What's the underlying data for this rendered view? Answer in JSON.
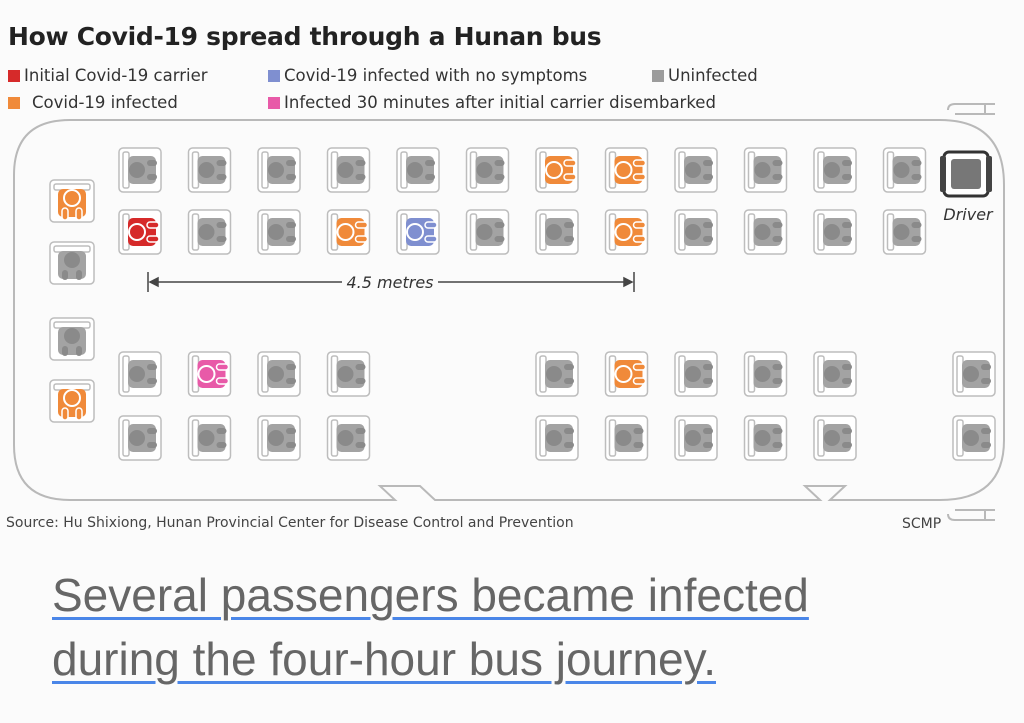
{
  "title": "How Covid-19 spread through a Hunan bus",
  "legend": [
    {
      "label": "Initial Covid-19 carrier",
      "color": "#d62a2a"
    },
    {
      "label": "Covid-19 infected",
      "color": "#f08a3a"
    },
    {
      "label": "Covid-19 infected with no symptoms",
      "color": "#7f8fd0"
    },
    {
      "label": "Infected 30 minutes after initial carrier disembarked",
      "color": "#e85aa8"
    },
    {
      "label": "Uninfected",
      "color": "#9c9c9c"
    }
  ],
  "distance_label": "4.5 metres",
  "driver_label": "Driver",
  "source": "Source: Hu Shixiong, Hunan Provincial Center for Disease Control and Prevention",
  "credit": "SCMP",
  "caption": {
    "line1": "Several passengers became infected",
    "line2": "during the four-hour bus journey."
  },
  "seating": {
    "right_row1": [
      "U",
      "U",
      "U",
      "U",
      "U",
      "U",
      "I",
      "I",
      "U",
      "U",
      "U",
      "U"
    ],
    "right_row2": [
      "C",
      "U",
      "U",
      "I",
      "A",
      "U",
      "U",
      "I",
      "U",
      "U",
      "U",
      "U"
    ],
    "left_row1": [
      "U",
      "P",
      "U",
      "U",
      null,
      null,
      "U",
      "I",
      "U",
      "U",
      "U",
      null,
      "U"
    ],
    "left_row2": [
      "U",
      "U",
      "U",
      "U",
      null,
      null,
      "U",
      "U",
      "U",
      "U",
      "U",
      null,
      "U"
    ],
    "back_seats": [
      "I",
      "U",
      "U",
      "I"
    ]
  }
}
